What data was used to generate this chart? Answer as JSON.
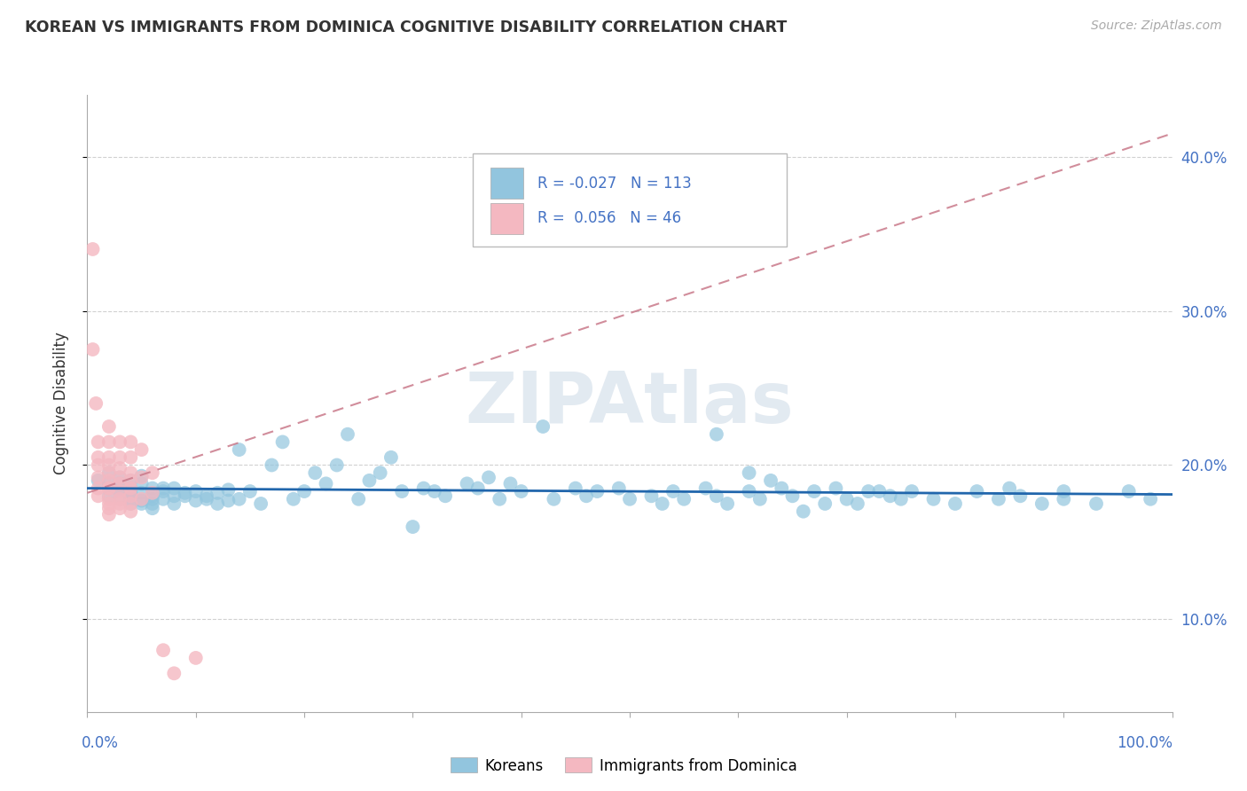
{
  "title": "KOREAN VS IMMIGRANTS FROM DOMINICA COGNITIVE DISABILITY CORRELATION CHART",
  "source": "Source: ZipAtlas.com",
  "ylabel": "Cognitive Disability",
  "y_ticks": [
    0.1,
    0.2,
    0.3,
    0.4
  ],
  "y_tick_labels": [
    "10.0%",
    "20.0%",
    "30.0%",
    "40.0%"
  ],
  "xlim": [
    0.0,
    1.0
  ],
  "ylim": [
    0.04,
    0.44
  ],
  "korean_color": "#92c5de",
  "dominica_color": "#f4b8c1",
  "korean_line_color": "#2166ac",
  "dominica_line_color": "#c9798a",
  "background_color": "#ffffff",
  "grid_color": "#cccccc",
  "legend_text_color": "#4472c4",
  "korean_x": [
    0.01,
    0.02,
    0.02,
    0.02,
    0.02,
    0.03,
    0.03,
    0.03,
    0.03,
    0.03,
    0.04,
    0.04,
    0.04,
    0.04,
    0.04,
    0.04,
    0.05,
    0.05,
    0.05,
    0.05,
    0.05,
    0.06,
    0.06,
    0.06,
    0.06,
    0.06,
    0.07,
    0.07,
    0.07,
    0.08,
    0.08,
    0.08,
    0.09,
    0.09,
    0.1,
    0.1,
    0.11,
    0.11,
    0.12,
    0.12,
    0.13,
    0.13,
    0.14,
    0.14,
    0.15,
    0.16,
    0.17,
    0.18,
    0.19,
    0.2,
    0.21,
    0.22,
    0.23,
    0.24,
    0.25,
    0.26,
    0.27,
    0.28,
    0.29,
    0.3,
    0.31,
    0.32,
    0.33,
    0.35,
    0.36,
    0.37,
    0.38,
    0.39,
    0.4,
    0.42,
    0.43,
    0.45,
    0.46,
    0.47,
    0.49,
    0.5,
    0.52,
    0.53,
    0.54,
    0.55,
    0.57,
    0.58,
    0.59,
    0.61,
    0.62,
    0.64,
    0.65,
    0.67,
    0.68,
    0.7,
    0.72,
    0.74,
    0.76,
    0.78,
    0.8,
    0.82,
    0.84,
    0.86,
    0.88,
    0.9,
    0.58,
    0.61,
    0.63,
    0.66,
    0.69,
    0.71,
    0.73,
    0.75,
    0.85,
    0.9,
    0.93,
    0.96,
    0.98
  ],
  "korean_y": [
    0.19,
    0.185,
    0.195,
    0.18,
    0.188,
    0.185,
    0.178,
    0.192,
    0.183,
    0.188,
    0.18,
    0.175,
    0.185,
    0.19,
    0.178,
    0.183,
    0.177,
    0.188,
    0.193,
    0.175,
    0.182,
    0.178,
    0.185,
    0.172,
    0.18,
    0.175,
    0.183,
    0.178,
    0.185,
    0.18,
    0.175,
    0.185,
    0.18,
    0.182,
    0.177,
    0.183,
    0.178,
    0.18,
    0.175,
    0.182,
    0.177,
    0.184,
    0.21,
    0.178,
    0.183,
    0.175,
    0.2,
    0.215,
    0.178,
    0.183,
    0.195,
    0.188,
    0.2,
    0.22,
    0.178,
    0.19,
    0.195,
    0.205,
    0.183,
    0.16,
    0.185,
    0.183,
    0.18,
    0.188,
    0.185,
    0.192,
    0.178,
    0.188,
    0.183,
    0.225,
    0.178,
    0.185,
    0.18,
    0.183,
    0.185,
    0.178,
    0.18,
    0.175,
    0.183,
    0.178,
    0.185,
    0.18,
    0.175,
    0.183,
    0.178,
    0.185,
    0.18,
    0.183,
    0.175,
    0.178,
    0.183,
    0.18,
    0.183,
    0.178,
    0.175,
    0.183,
    0.178,
    0.18,
    0.175,
    0.183,
    0.22,
    0.195,
    0.19,
    0.17,
    0.185,
    0.175,
    0.183,
    0.178,
    0.185,
    0.178,
    0.175,
    0.183,
    0.178
  ],
  "dominica_x": [
    0.005,
    0.005,
    0.008,
    0.01,
    0.01,
    0.01,
    0.01,
    0.01,
    0.01,
    0.02,
    0.02,
    0.02,
    0.02,
    0.02,
    0.02,
    0.02,
    0.02,
    0.02,
    0.02,
    0.02,
    0.02,
    0.03,
    0.03,
    0.03,
    0.03,
    0.03,
    0.03,
    0.03,
    0.03,
    0.03,
    0.04,
    0.04,
    0.04,
    0.04,
    0.04,
    0.04,
    0.04,
    0.04,
    0.05,
    0.05,
    0.05,
    0.06,
    0.06,
    0.07,
    0.08,
    0.1
  ],
  "dominica_y": [
    0.34,
    0.275,
    0.24,
    0.215,
    0.205,
    0.2,
    0.192,
    0.185,
    0.18,
    0.225,
    0.215,
    0.205,
    0.2,
    0.195,
    0.19,
    0.185,
    0.185,
    0.178,
    0.175,
    0.172,
    0.168,
    0.215,
    0.205,
    0.198,
    0.192,
    0.188,
    0.183,
    0.178,
    0.175,
    0.172,
    0.215,
    0.205,
    0.195,
    0.19,
    0.185,
    0.18,
    0.175,
    0.17,
    0.21,
    0.192,
    0.178,
    0.195,
    0.182,
    0.08,
    0.065,
    0.075
  ],
  "korean_trend_x": [
    0.0,
    1.0
  ],
  "korean_trend_y": [
    0.185,
    0.181
  ],
  "dominica_trend_x": [
    0.0,
    1.0
  ],
  "dominica_trend_y": [
    0.182,
    0.415
  ]
}
